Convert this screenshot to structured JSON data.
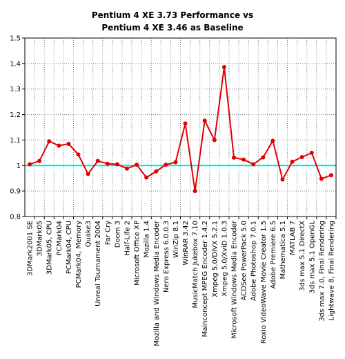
{
  "chart_data": {
    "type": "line",
    "title": "Pentium 4 XE 3.73 Performance vs",
    "subtitle": "Pentium 4 XE 3.46 as Baseline",
    "xlabel": "",
    "ylabel": "",
    "ylim": [
      0.8,
      1.5
    ],
    "yticks": [
      "0.8",
      "0.9",
      "1",
      "1.1",
      "1.2",
      "1.3",
      "1.4",
      "1.5"
    ],
    "grid": true,
    "legend": "none",
    "baseline": 1.0,
    "colors": {
      "series": "#e00000",
      "baseline": "#00e5e5",
      "grid": "#808080",
      "axis": "#000000"
    },
    "categories": [
      "3DMark2001 SE",
      "3DMark05",
      "3DMark05, CPU",
      "PCMark04",
      "PCMark04, CPU",
      "PCMark04, Memory",
      "Quake3",
      "Unreal Tournament 2004",
      "Far Cry",
      "Doom 3",
      "Half-Life 2",
      "Microsoft Office XP",
      "Mozilla 1.4",
      "Mozilla and Windows Media Encoder",
      "Nero Express 6.0.0.3",
      "WinZip 8.1",
      "WinRAR 3.42",
      "MusicMatch Jukebox 7.10",
      "Mainconcept MPEG Encoder 1.4.2",
      "Xmpeg 5.0/DiVX 5.2.1",
      "Xmpeg 5.0/XviD 1.0.3",
      "Microsoft Windows Media Encoder",
      "ACDSee PowerPack 5.0",
      "Adobe Photoshop 7.0.1",
      "Roxio VideoWave Movie Creator 1.5",
      "Adobe Premiere 6.5",
      "Mathematica 5.1",
      "MATLAB 7",
      "3ds max 5.1 DirectX",
      "3ds max 5.1 OpenGL",
      "3ds max 7.0, Final Rendering",
      "Lightwave 8, Final Rendering"
    ],
    "series": [
      {
        "values": [
          1.005,
          1.018,
          1.095,
          1.078,
          1.085,
          1.043,
          0.967,
          1.018,
          1.007,
          1.005,
          0.988,
          1.003,
          0.953,
          0.977,
          1.003,
          1.013,
          1.165,
          0.9,
          1.176,
          1.1,
          1.386,
          1.031,
          1.023,
          1.005,
          1.032,
          1.097,
          0.945,
          1.015,
          1.033,
          1.05,
          0.948,
          0.962
        ]
      }
    ]
  }
}
